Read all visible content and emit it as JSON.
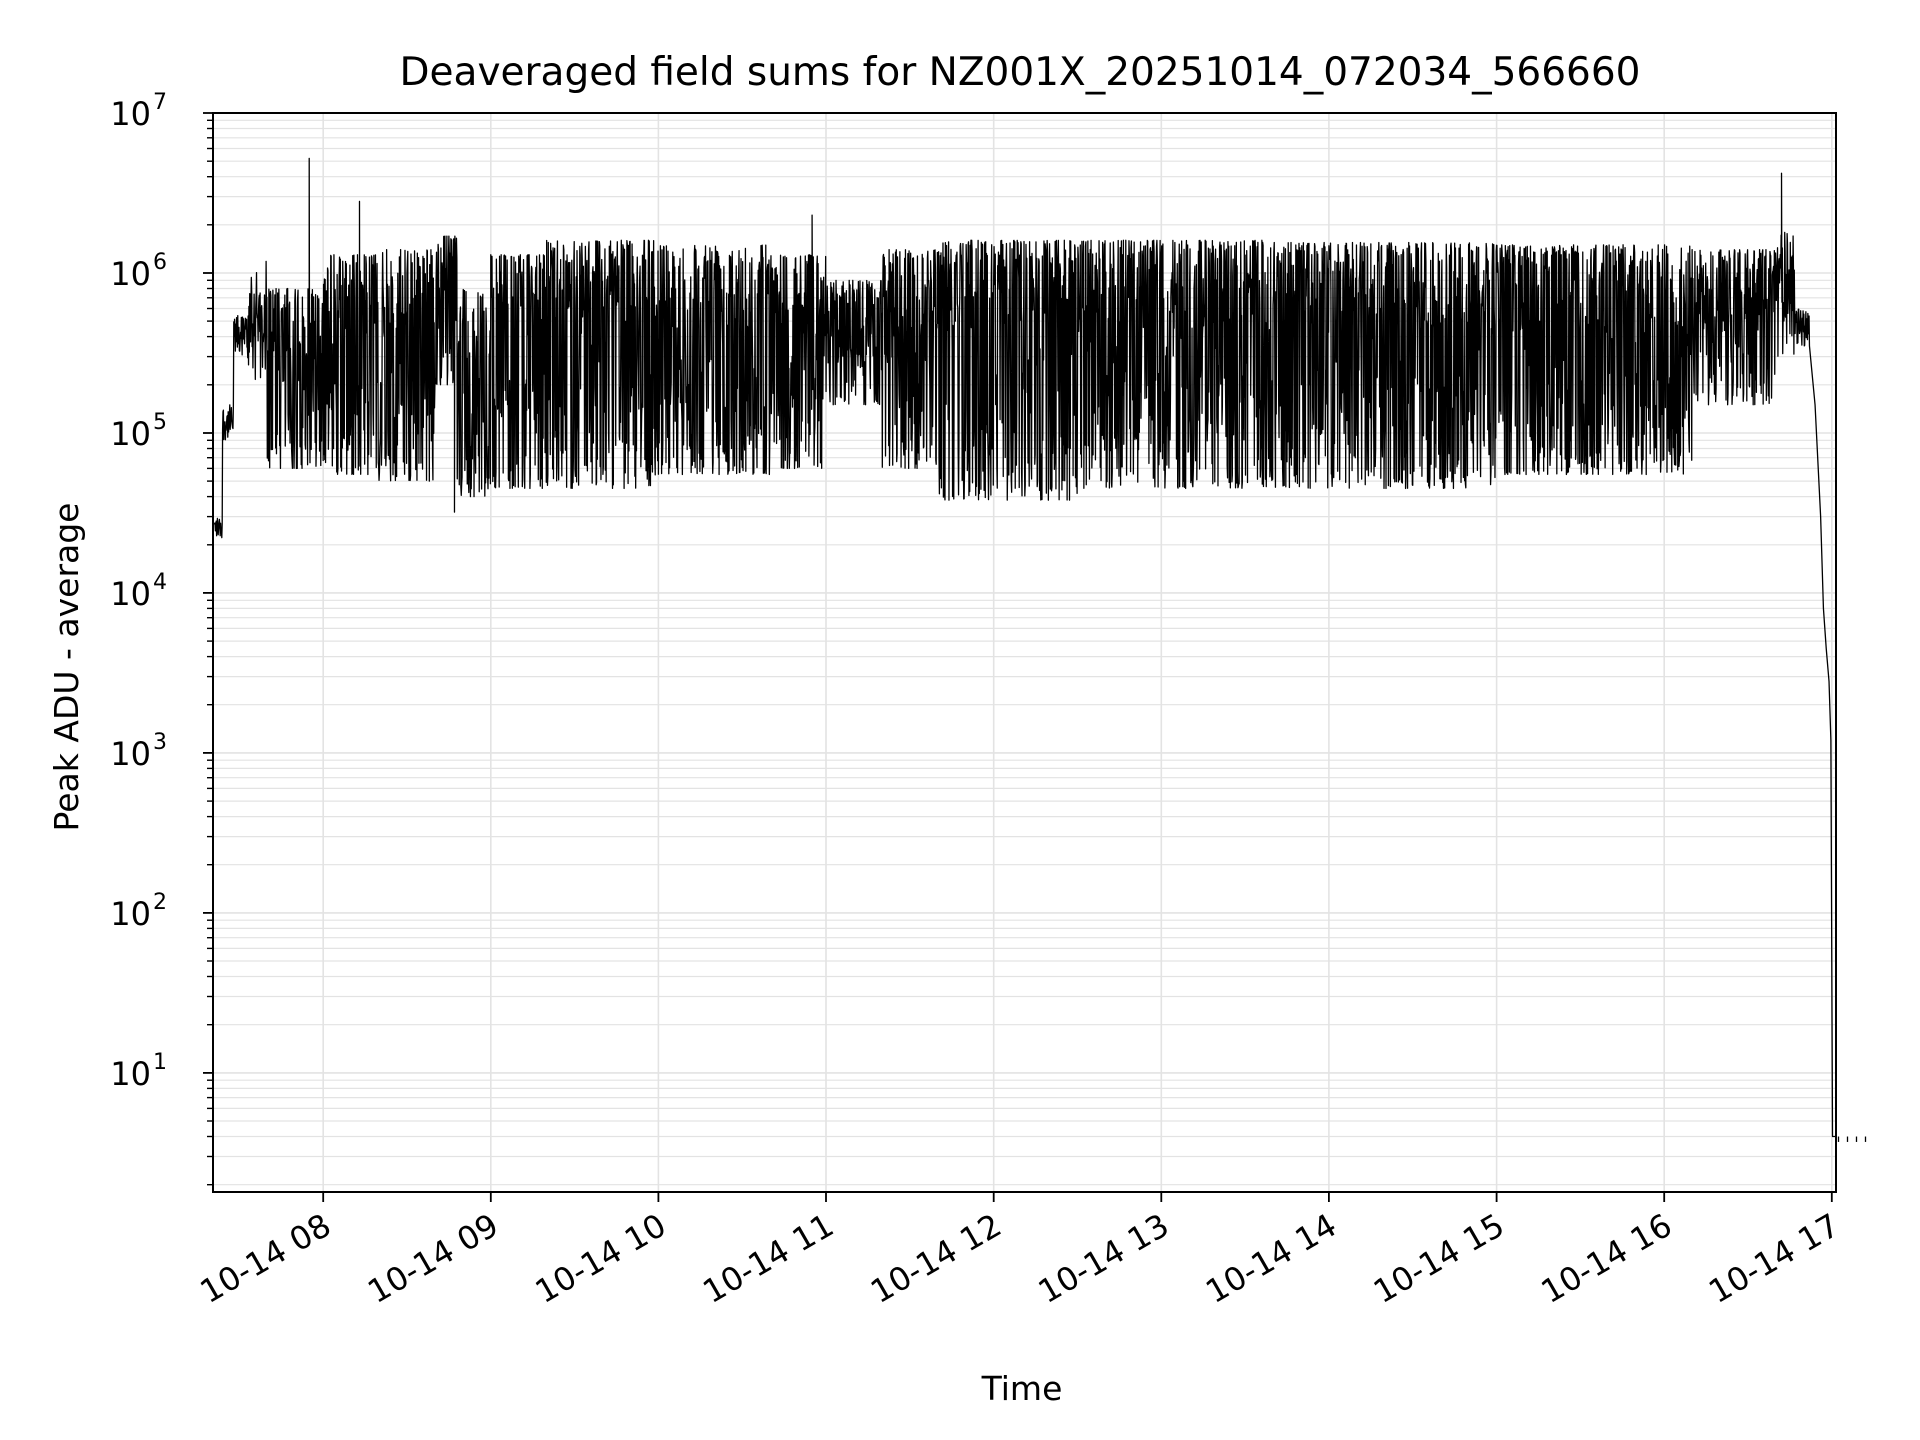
{
  "chart_data": {
    "type": "line",
    "title": "Deaveraged field sums for NZ001X_20251014_072034_566660",
    "xlabel": "Time",
    "ylabel": "Peak ADU - average",
    "yscale": "log",
    "ylim": [
      1.8,
      10000000
    ],
    "xlim": [
      "2025-10-14 07:20:34",
      "2025-10-14 17:01:30"
    ],
    "grid": true,
    "grid_minor": true,
    "line_color": "#000000",
    "grid_color": "#e3e3e3",
    "x_ticks": [
      {
        "value": "2025-10-14 08:00",
        "label": "10-14 08"
      },
      {
        "value": "2025-10-14 09:00",
        "label": "10-14 09"
      },
      {
        "value": "2025-10-14 10:00",
        "label": "10-14 10"
      },
      {
        "value": "2025-10-14 11:00",
        "label": "10-14 11"
      },
      {
        "value": "2025-10-14 12:00",
        "label": "10-14 12"
      },
      {
        "value": "2025-10-14 13:00",
        "label": "10-14 13"
      },
      {
        "value": "2025-10-14 14:00",
        "label": "10-14 14"
      },
      {
        "value": "2025-10-14 15:00",
        "label": "10-14 15"
      },
      {
        "value": "2025-10-14 16:00",
        "label": "10-14 16"
      },
      {
        "value": "2025-10-14 17:00",
        "label": "10-14 17"
      }
    ],
    "y_ticks": [
      {
        "value": 10,
        "base": "10",
        "exp": "1"
      },
      {
        "value": 100,
        "base": "10",
        "exp": "2"
      },
      {
        "value": 1000,
        "base": "10",
        "exp": "3"
      },
      {
        "value": 10000,
        "base": "10",
        "exp": "4"
      },
      {
        "value": 100000,
        "base": "10",
        "exp": "5"
      },
      {
        "value": 1000000,
        "base": "10",
        "exp": "6"
      },
      {
        "value": 10000000,
        "base": "10",
        "exp": "7"
      }
    ],
    "envelope_segments": [
      {
        "start": "07:21",
        "end": "07:24",
        "upper": 30000,
        "lower": 22000
      },
      {
        "start": "07:24",
        "end": "07:28",
        "upper": 150000,
        "lower": 90000
      },
      {
        "start": "07:28",
        "end": "07:33",
        "upper": 550000,
        "lower": 300000
      },
      {
        "start": "07:33",
        "end": "07:40",
        "upper": 750000,
        "lower": 250000
      },
      {
        "start": "07:40",
        "end": "08:00",
        "upper": 800000,
        "lower": 60000
      },
      {
        "start": "08:00",
        "end": "08:20",
        "upper": 1300000,
        "lower": 55000
      },
      {
        "start": "08:20",
        "end": "08:40",
        "upper": 1400000,
        "lower": 50000
      },
      {
        "start": "08:40",
        "end": "08:48",
        "upper": 1700000,
        "lower": 200000
      },
      {
        "start": "08:48",
        "end": "09:00",
        "upper": 800000,
        "lower": 40000
      },
      {
        "start": "09:00",
        "end": "09:20",
        "upper": 1300000,
        "lower": 45000
      },
      {
        "start": "09:20",
        "end": "10:00",
        "upper": 1600000,
        "lower": 45000
      },
      {
        "start": "10:00",
        "end": "10:40",
        "upper": 1500000,
        "lower": 55000
      },
      {
        "start": "10:40",
        "end": "11:00",
        "upper": 1300000,
        "lower": 60000
      },
      {
        "start": "11:00",
        "end": "11:20",
        "upper": 900000,
        "lower": 150000
      },
      {
        "start": "11:20",
        "end": "11:40",
        "upper": 1400000,
        "lower": 60000
      },
      {
        "start": "11:40",
        "end": "12:30",
        "upper": 1600000,
        "lower": 38000
      },
      {
        "start": "12:30",
        "end": "13:40",
        "upper": 1600000,
        "lower": 45000
      },
      {
        "start": "13:40",
        "end": "15:00",
        "upper": 1550000,
        "lower": 45000
      },
      {
        "start": "15:00",
        "end": "16:10",
        "upper": 1500000,
        "lower": 55000
      },
      {
        "start": "16:10",
        "end": "16:40",
        "upper": 1400000,
        "lower": 150000
      },
      {
        "start": "16:40",
        "end": "16:47",
        "upper": 1800000,
        "lower": 300000
      },
      {
        "start": "16:47",
        "end": "16:52",
        "upper": 600000,
        "lower": 350000
      }
    ],
    "spikes": [
      {
        "time": "07:55",
        "value": 5200000
      },
      {
        "time": "08:13",
        "value": 2800000
      },
      {
        "time": "08:47",
        "value": 32000,
        "direction": "down"
      },
      {
        "time": "10:55",
        "value": 2300000
      },
      {
        "time": "16:42",
        "value": 4200000
      }
    ],
    "tail": [
      {
        "time": "16:52",
        "value": 350000
      },
      {
        "time": "16:54",
        "value": 150000
      },
      {
        "time": "16:56",
        "value": 30000
      },
      {
        "time": "16:57",
        "value": 8000
      },
      {
        "time": "16:58",
        "value": 4500
      },
      {
        "time": "16:59",
        "value": 2800
      },
      {
        "time": "16:59:40",
        "value": 1200
      },
      {
        "time": "17:00:15",
        "value": 4
      },
      {
        "time": "17:01:30",
        "value": 4
      }
    ]
  }
}
